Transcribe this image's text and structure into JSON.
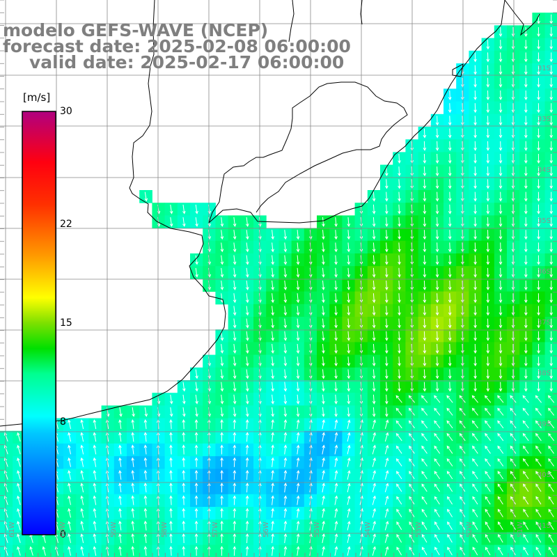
{
  "title": {
    "model": "modelo GEFS-WAVE (NCEP)",
    "forecast": "forecast date: 2025-02-08 06:00:00",
    "valid": "valid date: 2025-02-17 06:00:00"
  },
  "colorbar": {
    "unit": "[m/s]",
    "min": 0,
    "max": 30,
    "ticks": [
      "30",
      "22",
      "15",
      "8",
      "0"
    ],
    "tick_values": [
      30,
      22,
      15,
      8,
      0
    ],
    "colors": [
      "#0000ff",
      "#00c8ff",
      "#00ffff",
      "#00e000",
      "#40e000",
      "#ffff00",
      "#ff9900",
      "#ff2000",
      "#ff0000",
      "#e0206e",
      "#b00080"
    ]
  },
  "map": {
    "lat_labels": [
      "31S",
      "33S",
      "34S",
      "35S",
      "36S",
      "37S",
      "38S",
      "39S",
      "40S",
      "41S"
    ],
    "lon_labels": [
      "61W",
      "60W",
      "59W",
      "58W",
      "57W",
      "56W",
      "55W",
      "54W",
      "53W",
      "52W",
      "51W"
    ],
    "land_color": "#ffffff",
    "grid_color": "#888888"
  },
  "chart_data": {
    "type": "heatmap",
    "title": "modelo GEFS-WAVE (NCEP)",
    "variable_unit": "[m/s]",
    "value_range": [
      0,
      30
    ],
    "dominant_field": "wind speed approx. 5-14 m/s over ocean",
    "regions": [
      {
        "name": "northern coastal strip",
        "approx_speed": 11
      },
      {
        "name": "central open ocean",
        "approx_speed": 14
      },
      {
        "name": "southern band near 40S",
        "approx_speed": 6
      },
      {
        "name": "southeast corner near 41S 52W",
        "approx_speed": 15
      }
    ]
  }
}
